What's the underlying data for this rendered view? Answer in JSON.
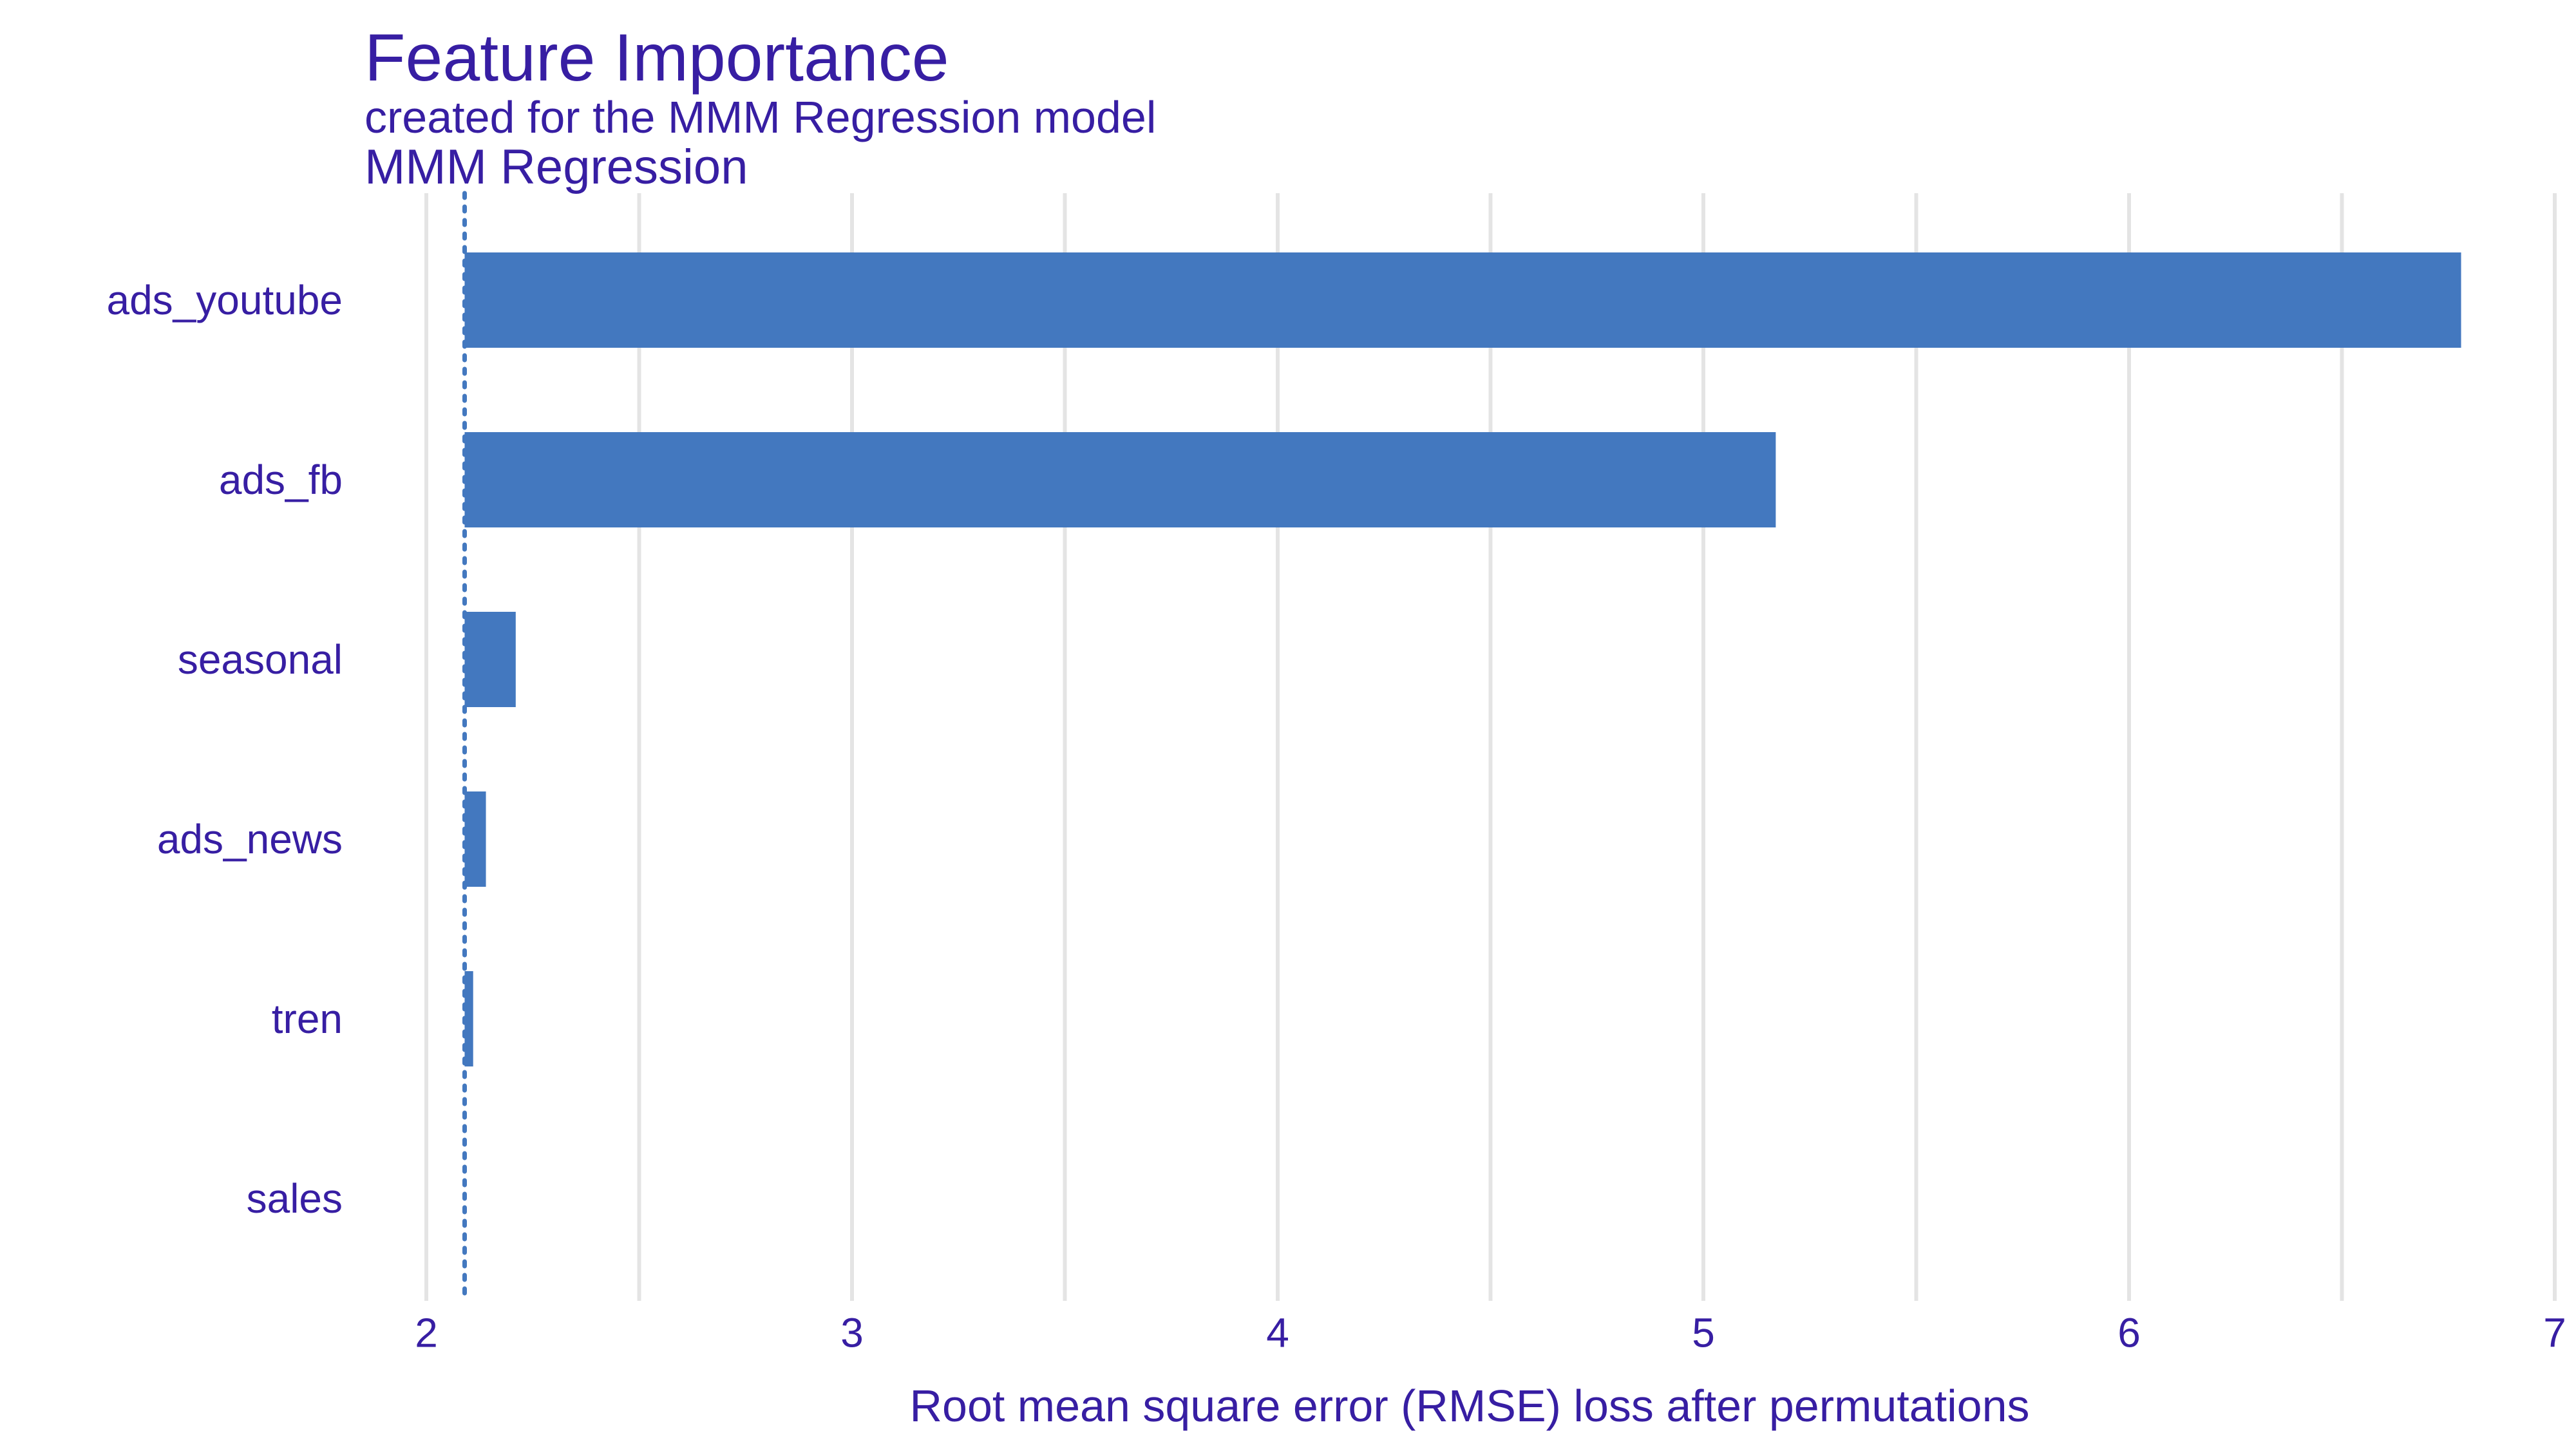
{
  "colors": {
    "text": "#371EA3",
    "bar": "#4378BF",
    "grid": "#E4E4E4",
    "baseline": "#4378BF",
    "background": "#FFFFFF"
  },
  "chart_data": {
    "type": "bar",
    "orientation": "horizontal",
    "title": "Feature Importance",
    "subtitle": "created for the MMM Regression model",
    "panel_label": "MMM Regression",
    "xlabel": "Root mean square error (RMSE) loss after permutations",
    "ylabel": "",
    "xlim": [
      2,
      7
    ],
    "xticks": [
      2,
      3,
      4,
      5,
      6,
      7
    ],
    "grid": true,
    "baseline": 2.09,
    "categories": [
      "ads_youtube",
      "ads_fb",
      "seasonal",
      "ads_news",
      "tren",
      "sales"
    ],
    "values": [
      6.78,
      5.17,
      2.21,
      2.14,
      2.11,
      2.09
    ]
  }
}
